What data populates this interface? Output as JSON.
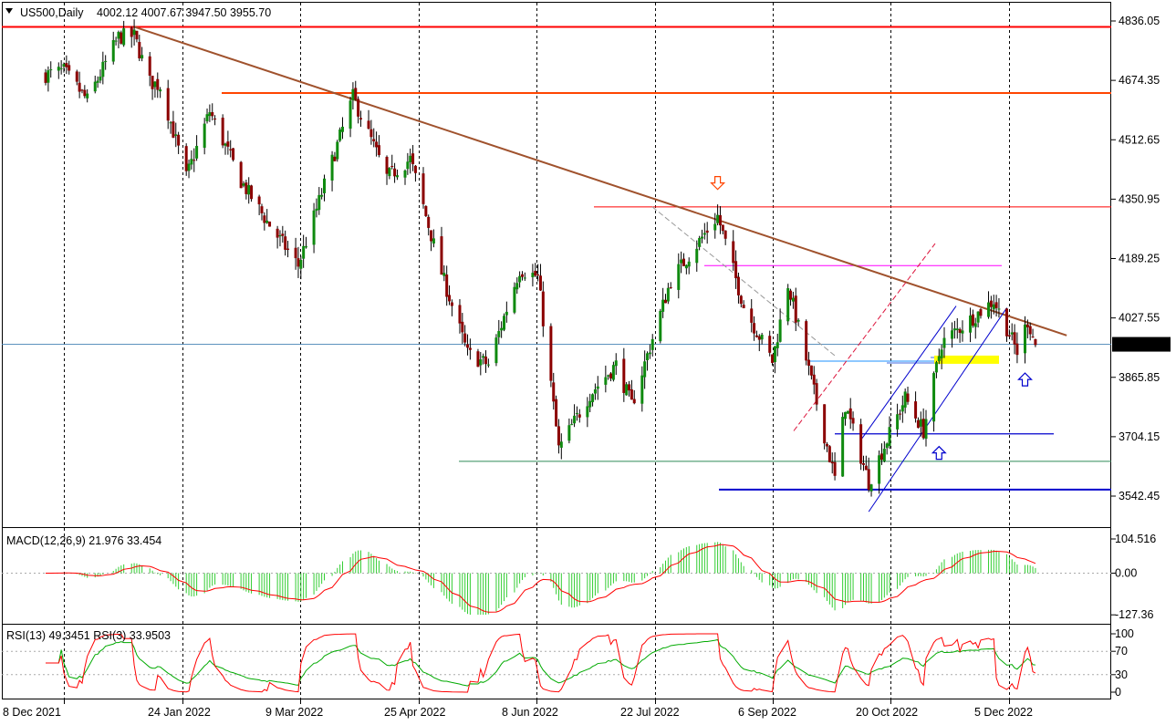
{
  "header": {
    "symbol": "US500,Daily",
    "ohlc": "4002.12 4007.67 3947.50 3955.70"
  },
  "price_axis": {
    "labels": [
      "4836.05",
      "4674.35",
      "4512.65",
      "4350.95",
      "4189.25",
      "4027.55",
      "3865.85",
      "3704.15",
      "3542.45"
    ],
    "current_price": "3955.70"
  },
  "date_axis": {
    "labels": [
      "8 Dec 2021",
      "24 Jan 2022",
      "9 Mar 2022",
      "25 Apr 2022",
      "8 Jun 2022",
      "22 Jul 2022",
      "6 Sep 2022",
      "20 Oct 2022",
      "5 Dec 2022"
    ]
  },
  "macd": {
    "title": "MACD(12,26,9) 21.976 33.454",
    "axis_labels": [
      "104.516",
      "0.00",
      "-127.36"
    ]
  },
  "rsi": {
    "title": "RSI(13) 49.3451  RSI(3) 33.9503",
    "axis_labels": [
      "100",
      "70",
      "30",
      "0"
    ]
  },
  "colors": {
    "bull_candle": "#0f8a0f",
    "bear_candle": "#8b0000",
    "wick": "#000000",
    "resistance_red": "#ff0000",
    "resistance_orange": "#ff4500",
    "trendline_brown": "#a0522d",
    "support_blue": "#0000cd",
    "highlight_yellow": "#ffff00",
    "macd_hist": "#32cd32",
    "macd_signal": "#ff0000",
    "rsi_13": "#00aa00",
    "rsi_3": "#ff0000"
  },
  "chart_data": {
    "type": "line",
    "instrument": "US500",
    "timeframe": "Daily",
    "price_range": [
      3460,
      4870
    ],
    "close_path": [
      {
        "date": "2021-12-01",
        "close": 4690
      },
      {
        "date": "2021-12-08",
        "close": 4700
      },
      {
        "date": "2021-12-17",
        "close": 4620
      },
      {
        "date": "2021-12-29",
        "close": 4793
      },
      {
        "date": "2022-01-04",
        "close": 4795
      },
      {
        "date": "2022-01-10",
        "close": 4670
      },
      {
        "date": "2022-01-14",
        "close": 4660
      },
      {
        "date": "2022-01-24",
        "close": 4410
      },
      {
        "date": "2022-02-02",
        "close": 4590
      },
      {
        "date": "2022-02-14",
        "close": 4400
      },
      {
        "date": "2022-02-24",
        "close": 4290
      },
      {
        "date": "2022-03-08",
        "close": 4170
      },
      {
        "date": "2022-03-29",
        "close": 4630
      },
      {
        "date": "2022-04-11",
        "close": 4410
      },
      {
        "date": "2022-04-20",
        "close": 4460
      },
      {
        "date": "2022-05-02",
        "close": 4150
      },
      {
        "date": "2022-05-12",
        "close": 3930
      },
      {
        "date": "2022-05-20",
        "close": 3900
      },
      {
        "date": "2022-06-01",
        "close": 4160
      },
      {
        "date": "2022-06-08",
        "close": 4140
      },
      {
        "date": "2022-06-16",
        "close": 3670
      },
      {
        "date": "2022-06-28",
        "close": 3820
      },
      {
        "date": "2022-07-08",
        "close": 3900
      },
      {
        "date": "2022-07-14",
        "close": 3790
      },
      {
        "date": "2022-07-29",
        "close": 4130
      },
      {
        "date": "2022-08-16",
        "close": 4305
      },
      {
        "date": "2022-08-26",
        "close": 4060
      },
      {
        "date": "2022-09-06",
        "close": 3910
      },
      {
        "date": "2022-09-12",
        "close": 4120
      },
      {
        "date": "2022-09-30",
        "close": 3590
      },
      {
        "date": "2022-10-04",
        "close": 3790
      },
      {
        "date": "2022-10-13",
        "close": 3580
      },
      {
        "date": "2022-10-27",
        "close": 3810
      },
      {
        "date": "2022-11-03",
        "close": 3720
      },
      {
        "date": "2022-11-10",
        "close": 3960
      },
      {
        "date": "2022-11-30",
        "close": 4075
      },
      {
        "date": "2022-12-05",
        "close": 4000
      },
      {
        "date": "2022-12-09",
        "close": 3935
      },
      {
        "date": "2022-12-13",
        "close": 4020
      },
      {
        "date": "2022-12-16",
        "close": 3955.7
      }
    ],
    "horizontal_levels": [
      {
        "price": 4820,
        "color": "#ff0000"
      },
      {
        "price": 4640,
        "color": "#ff4500"
      },
      {
        "price": 4330,
        "color": "#ff0000"
      },
      {
        "price": 4170,
        "color": "#ff00ff"
      },
      {
        "price": 3955.7,
        "color": "#4682b4"
      },
      {
        "price": 3910,
        "color": "#1e90ff"
      },
      {
        "price": 3712,
        "color": "#0000cd"
      },
      {
        "price": 3637,
        "color": "#2e8b57"
      },
      {
        "price": 3560,
        "color": "#0000cd"
      }
    ],
    "trendline": {
      "color": "#a0522d",
      "from": {
        "date": "2022-01-04",
        "price": 4820
      },
      "to": {
        "date": "2022-12-28",
        "price": 3980
      }
    },
    "support_trendline": {
      "color": "#0000cd",
      "from": {
        "date": "2022-10-13",
        "price": 3500
      },
      "to": {
        "date": "2022-12-05",
        "price": 4055
      }
    },
    "markers": [
      {
        "date": "2022-08-16",
        "price": 4395,
        "shape": "down-arrow",
        "color": "#ff4500"
      },
      {
        "date": "2022-11-09",
        "price": 3660,
        "shape": "up-arrow",
        "color": "#0000cd"
      },
      {
        "date": "2022-12-12",
        "price": 3860,
        "shape": "up-arrow",
        "color": "#0000cd"
      }
    ],
    "macd": {
      "fast": 12,
      "slow": 26,
      "signal": 9,
      "value": 21.976,
      "signal_value": 33.454,
      "range": [
        -127.36,
        104.516
      ]
    },
    "rsi": {
      "periods": [
        13,
        3
      ],
      "values": [
        49.3451,
        33.9503
      ],
      "levels": [
        70,
        30
      ],
      "range": [
        0,
        100
      ]
    }
  }
}
